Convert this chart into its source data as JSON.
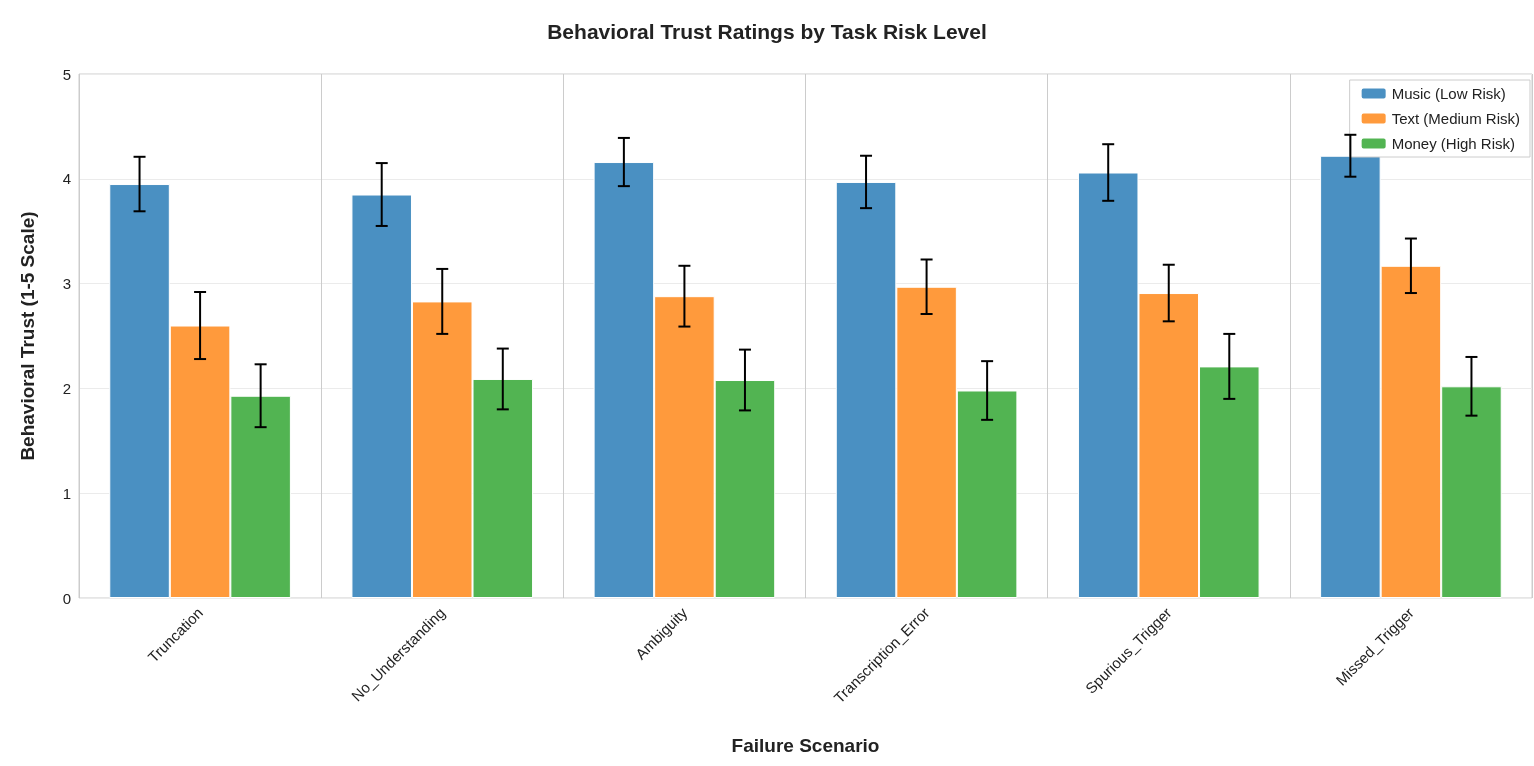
{
  "chart_data": {
    "type": "bar",
    "title": "Behavioral Trust Ratings by Task Risk Level",
    "xlabel": "Failure Scenario",
    "ylabel": "Behavioral Trust (1-5 Scale)",
    "categories": [
      "Truncation",
      "No_Understanding",
      "Ambiguity",
      "Transcription_Error",
      "Spurious_Trigger",
      "Missed_Trigger"
    ],
    "series": [
      {
        "name": "Music (Low Risk)",
        "color": "#4a90c2",
        "values": [
          3.95,
          3.85,
          4.16,
          3.97,
          4.06,
          4.22
        ],
        "errors": [
          0.26,
          0.3,
          0.23,
          0.25,
          0.27,
          0.2
        ]
      },
      {
        "name": "Text (Medium Risk)",
        "color": "#ff9a3c",
        "values": [
          2.6,
          2.83,
          2.88,
          2.97,
          2.91,
          3.17
        ],
        "errors": [
          0.32,
          0.31,
          0.29,
          0.26,
          0.27,
          0.26
        ]
      },
      {
        "name": "Money (High Risk)",
        "color": "#52b452",
        "values": [
          1.93,
          2.09,
          2.08,
          1.98,
          2.21,
          2.02
        ],
        "errors": [
          0.3,
          0.29,
          0.29,
          0.28,
          0.31,
          0.28
        ]
      }
    ],
    "ylim": [
      0,
      5
    ],
    "yticks": [
      0,
      1,
      2,
      3,
      4,
      5
    ],
    "grid": true,
    "legend": "top right"
  }
}
